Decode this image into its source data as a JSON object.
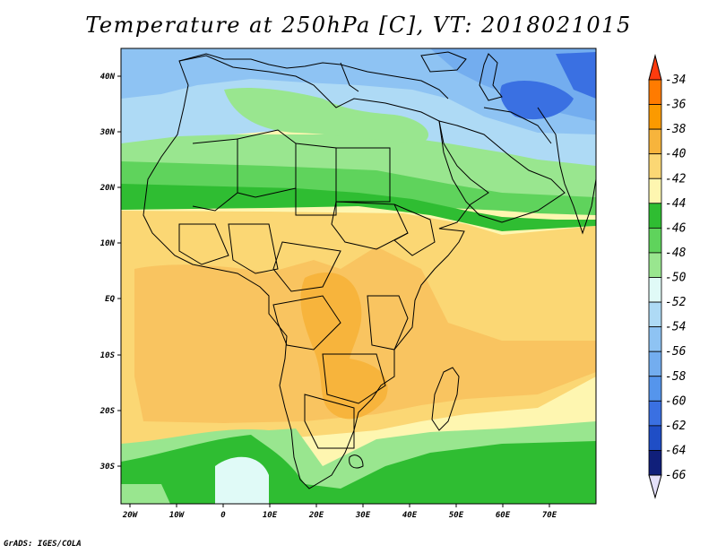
{
  "title": "Temperature at 250hPa [C], VT: 2018021015",
  "credit": "GrADS: IGES/COLA",
  "map": {
    "lon_labels": [
      "20W",
      "10W",
      "0",
      "10E",
      "20E",
      "30E",
      "40E",
      "50E",
      "60E",
      "70E"
    ],
    "lat_labels": [
      "40N",
      "30N",
      "20N",
      "10N",
      "EQ",
      "10S",
      "20S",
      "30S"
    ]
  },
  "colorbar": {
    "labels": [
      "-34",
      "-36",
      "-38",
      "-40",
      "-42",
      "-44",
      "-46",
      "-48",
      "-50",
      "-52",
      "-54",
      "-56",
      "-58",
      "-60",
      "-62",
      "-64",
      "-66"
    ],
    "colors": [
      "#fe3b0e",
      "#ff7b00",
      "#fb9a00",
      "#f7b43c",
      "#fbd774",
      "#fef6b0",
      "#2fbd32",
      "#5fd35c",
      "#99e68f",
      "#e0faf7",
      "#aedaf5",
      "#8ec3f3",
      "#73adef",
      "#5595ec",
      "#3a70e2",
      "#1f4ec6",
      "#101f7a",
      "#e4e0f9"
    ]
  }
}
